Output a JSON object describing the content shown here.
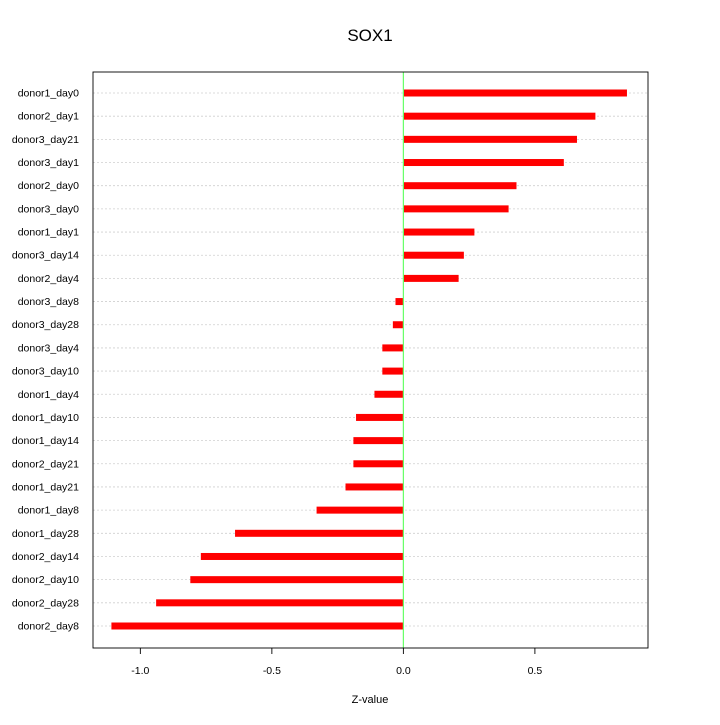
{
  "chart_data": {
    "type": "bar",
    "orientation": "horizontal",
    "title": "SOX1",
    "xlabel": "Z-value",
    "ylabel": "",
    "xlim": [
      -1.18,
      0.93
    ],
    "xticks": [
      -1.0,
      -0.5,
      0.0,
      0.5
    ],
    "xtick_labels": [
      "-1.0",
      "-0.5",
      "0.0",
      "0.5"
    ],
    "reference_line": 0.0,
    "grid": "horizontal dotted",
    "colors": {
      "bar": "#ff0000",
      "reference_line": "#66ff66",
      "grid": "#cfcfcf"
    },
    "categories": [
      "donor1_day0",
      "donor2_day1",
      "donor3_day21",
      "donor3_day1",
      "donor2_day0",
      "donor3_day0",
      "donor1_day1",
      "donor3_day14",
      "donor2_day4",
      "donor3_day8",
      "donor3_day28",
      "donor3_day4",
      "donor3_day10",
      "donor1_day4",
      "donor1_day10",
      "donor1_day14",
      "donor2_day21",
      "donor1_day21",
      "donor1_day8",
      "donor1_day28",
      "donor2_day14",
      "donor2_day10",
      "donor2_day28",
      "donor2_day8"
    ],
    "values": [
      0.85,
      0.73,
      0.66,
      0.61,
      0.43,
      0.4,
      0.27,
      0.23,
      0.21,
      -0.03,
      -0.04,
      -0.08,
      -0.08,
      -0.11,
      -0.18,
      -0.19,
      -0.19,
      -0.22,
      -0.33,
      -0.64,
      -0.77,
      -0.81,
      -0.94,
      -1.11
    ]
  }
}
